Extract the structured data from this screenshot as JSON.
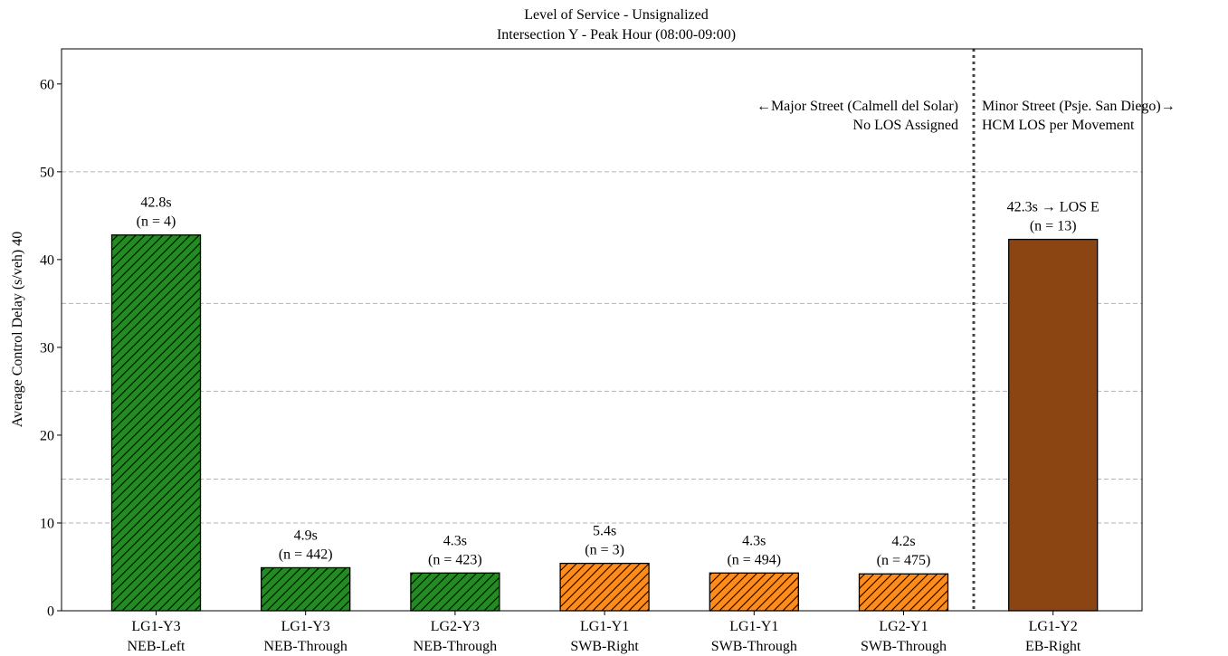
{
  "chart_data": {
    "type": "bar",
    "title": "Level of Service - Unsignalized",
    "subtitle": "Intersection Y - Peak Hour (08:00-09:00)",
    "ylabel": "Average Control Delay (s/veh) 40",
    "ylim": [
      0,
      64
    ],
    "yticks": [
      0,
      10,
      20,
      30,
      40,
      50,
      60
    ],
    "reference_lines": [
      10,
      15,
      25,
      35,
      50
    ],
    "bars": [
      {
        "line1": "LG1-Y3",
        "line2": "NEB-Left",
        "value": 42.8,
        "label": "42.8s",
        "n": "(n = 4)",
        "color": "#228b22",
        "hatch": true
      },
      {
        "line1": "LG1-Y3",
        "line2": "NEB-Through",
        "value": 4.9,
        "label": "4.9s",
        "n": "(n = 442)",
        "color": "#228b22",
        "hatch": true
      },
      {
        "line1": "LG2-Y3",
        "line2": "NEB-Through",
        "value": 4.3,
        "label": "4.3s",
        "n": "(n = 423)",
        "color": "#228b22",
        "hatch": true
      },
      {
        "line1": "LG1-Y1",
        "line2": "SWB-Right",
        "value": 5.4,
        "label": "5.4s",
        "n": "(n = 3)",
        "color": "#ff8c1a",
        "hatch": true
      },
      {
        "line1": "LG1-Y1",
        "line2": "SWB-Through",
        "value": 4.3,
        "label": "4.3s",
        "n": "(n = 494)",
        "color": "#ff8c1a",
        "hatch": true
      },
      {
        "line1": "LG2-Y1",
        "line2": "SWB-Through",
        "value": 4.2,
        "label": "4.2s",
        "n": "(n = 475)",
        "color": "#ff8c1a",
        "hatch": true
      },
      {
        "line1": "LG1-Y2",
        "line2": "EB-Right",
        "value": 42.3,
        "label": "42.3s → LOS E",
        "n": "(n = 13)",
        "color": "#8b4513",
        "hatch": false
      }
    ],
    "annotations": {
      "major_line1": "←Major Street (Calmell del Solar)",
      "major_line2": "No LOS Assigned",
      "minor_line1": "Minor Street (Psje. San Diego)→",
      "minor_line2": "HCM LOS per Movement"
    },
    "grid": false
  }
}
